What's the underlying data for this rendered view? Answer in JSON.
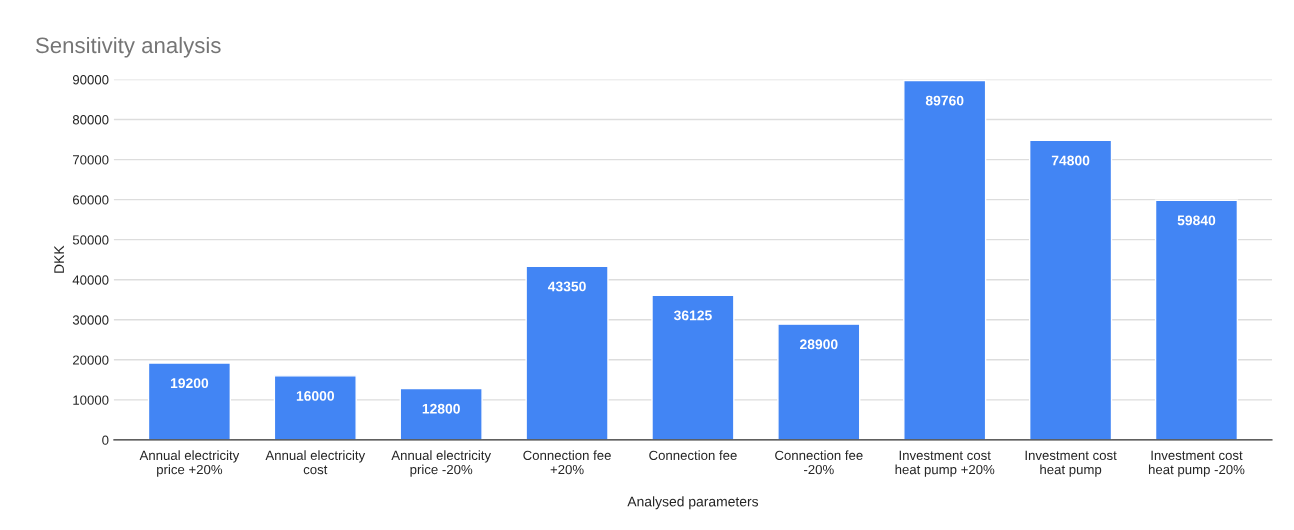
{
  "chart_data": {
    "type": "bar",
    "title": "Sensitivity analysis",
    "xlabel": "Analysed parameters",
    "ylabel": "DKK",
    "categories": [
      "Annual electricity\nprice +20%",
      "Annual electricity\ncost",
      "Annual electricity\nprice -20%",
      "Connection fee\n+20%",
      "Connection fee",
      "Connection fee\n-20%",
      "Investment cost\nheat pump +20%",
      "Investment cost\nheat pump",
      "Investment cost\nheat pump -20%"
    ],
    "values": [
      19200,
      16000,
      12800,
      43350,
      36125,
      28900,
      89760,
      74800,
      59840
    ],
    "color": "#4285f4",
    "data_labels": true,
    "ylim": [
      0,
      90000
    ],
    "yticks": [
      0,
      10000,
      20000,
      30000,
      40000,
      50000,
      60000,
      70000,
      80000,
      90000
    ],
    "grid": "y"
  }
}
